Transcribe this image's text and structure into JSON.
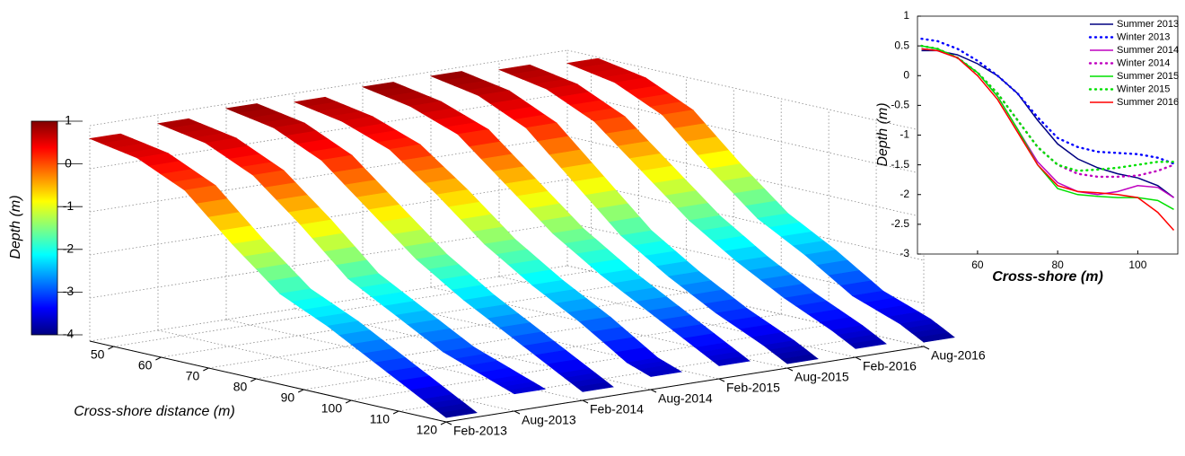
{
  "chart_data": [
    {
      "type": "surface3d",
      "xlabel": "Cross-shore distance (m)",
      "x": [
        45,
        55,
        65,
        75,
        85,
        95,
        105,
        115,
        120
      ],
      "xlim": [
        45,
        120
      ],
      "xticks": [
        50,
        60,
        70,
        80,
        90,
        100,
        110,
        120
      ],
      "y": [
        "Feb-2013",
        "Aug-2013",
        "Feb-2014",
        "Aug-2014",
        "Feb-2015",
        "Aug-2015",
        "Feb-2016",
        "Aug-2016"
      ],
      "z": [
        [
          0.7,
          0.5,
          0,
          -1,
          -1.9,
          -2.4,
          -3,
          -3.6,
          -3.9
        ],
        [
          0.8,
          0.6,
          0.1,
          -0.8,
          -1.8,
          -2.4,
          -3,
          -3.4,
          -3.6
        ],
        [
          0.9,
          0.7,
          0.2,
          -0.7,
          -1.6,
          -2.3,
          -2.9,
          -3.5,
          -3.8
        ],
        [
          0.8,
          0.6,
          0.2,
          -0.6,
          -1.5,
          -2.2,
          -2.8,
          -3.5,
          -3.7
        ],
        [
          0.9,
          0.7,
          0.3,
          -0.6,
          -1.5,
          -2.2,
          -2.8,
          -3.4,
          -3.7
        ],
        [
          0.9,
          0.7,
          0.2,
          -0.8,
          -1.8,
          -2.5,
          -3.1,
          -3.6,
          -3.9
        ],
        [
          0.8,
          0.6,
          0.1,
          -0.8,
          -1.7,
          -2.4,
          -3,
          -3.5,
          -3.8
        ],
        [
          0.7,
          0.5,
          0,
          -1,
          -1.9,
          -2.5,
          -3.2,
          -3.6,
          -3.9
        ]
      ],
      "zlim": [
        -4,
        1
      ],
      "zticks": [
        1,
        0,
        -1,
        -2,
        -3,
        -4
      ],
      "colorbar_label": "Depth (m)",
      "colormap": "jet",
      "grid": true
    },
    {
      "type": "line",
      "xlabel": "Cross-shore (m)",
      "ylabel": "Depth (m)",
      "x": [
        46,
        50,
        55,
        60,
        65,
        70,
        75,
        80,
        85,
        90,
        95,
        100,
        105,
        109
      ],
      "xlim": [
        45,
        110
      ],
      "ylim": [
        -3,
        1
      ],
      "xticks": [
        60,
        80,
        100
      ],
      "yticks": [
        -3,
        -2.5,
        -2,
        -1.5,
        -1,
        -0.5,
        0,
        0.5,
        1
      ],
      "legend": "upper right",
      "series": [
        {
          "name": "Summer 2013",
          "color": "#000080",
          "style": "solid",
          "values": [
            0.42,
            0.42,
            0.35,
            0.2,
            0,
            -0.3,
            -0.75,
            -1.15,
            -1.4,
            -1.55,
            -1.65,
            -1.72,
            -1.85,
            -2.05
          ]
        },
        {
          "name": "Winter 2013",
          "color": "#0000ff",
          "style": "dotted",
          "values": [
            0.62,
            0.58,
            0.45,
            0.25,
            0,
            -0.3,
            -0.7,
            -1.05,
            -1.2,
            -1.28,
            -1.3,
            -1.32,
            -1.38,
            -1.48
          ]
        },
        {
          "name": "Summer 2014",
          "color": "#bf00bf",
          "style": "solid",
          "values": [
            0.45,
            0.42,
            0.3,
            0.05,
            -0.35,
            -0.9,
            -1.45,
            -1.8,
            -1.95,
            -2,
            -1.95,
            -1.85,
            -1.88,
            -2.05
          ]
        },
        {
          "name": "Winter 2014",
          "color": "#bf00bf",
          "style": "dotted",
          "values": [
            0.5,
            0.45,
            0.3,
            0.05,
            -0.3,
            -0.75,
            -1.2,
            -1.5,
            -1.65,
            -1.7,
            -1.7,
            -1.68,
            -1.6,
            -1.5
          ]
        },
        {
          "name": "Summer 2015",
          "color": "#00e000",
          "style": "solid",
          "values": [
            0.5,
            0.45,
            0.3,
            0.05,
            -0.35,
            -0.9,
            -1.5,
            -1.9,
            -2,
            -2.03,
            -2.05,
            -2.05,
            -2.1,
            -2.25
          ]
        },
        {
          "name": "Winter 2015",
          "color": "#00e000",
          "style": "dotted",
          "values": [
            0.5,
            0.45,
            0.3,
            0.05,
            -0.3,
            -0.75,
            -1.2,
            -1.5,
            -1.6,
            -1.58,
            -1.55,
            -1.5,
            -1.45,
            -1.45
          ]
        },
        {
          "name": "Summer 2016",
          "color": "#ff0000",
          "style": "solid",
          "values": [
            0.45,
            0.42,
            0.3,
            0,
            -0.4,
            -0.95,
            -1.5,
            -1.85,
            -1.95,
            -1.97,
            -2,
            -2.05,
            -2.3,
            -2.6
          ]
        }
      ]
    }
  ]
}
